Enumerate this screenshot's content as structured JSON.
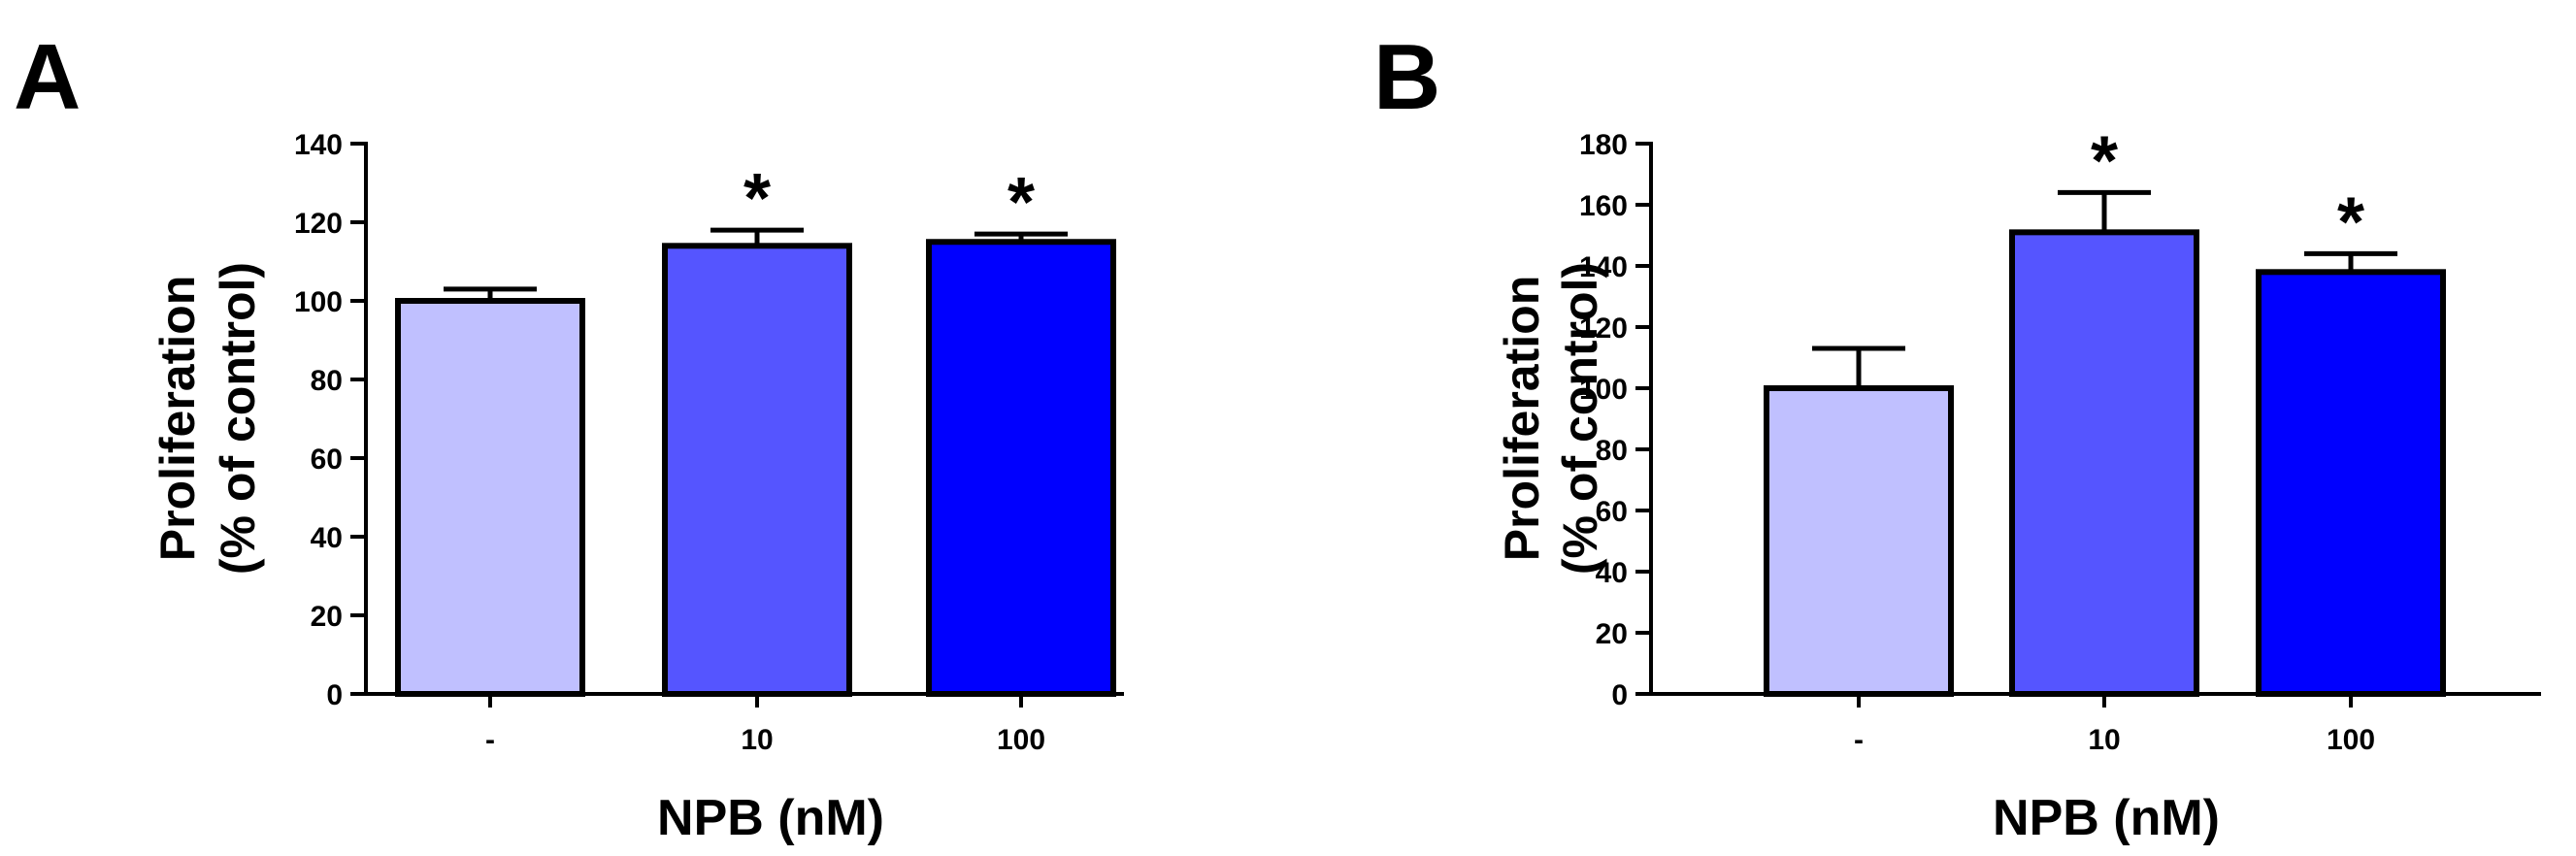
{
  "chart_data": [
    {
      "type": "bar",
      "panel_label": "A",
      "categories": [
        "-",
        "10",
        "100"
      ],
      "values": [
        100,
        114,
        115
      ],
      "errors": [
        3,
        4,
        2
      ],
      "significance": [
        "",
        "*",
        "*"
      ],
      "colors": [
        "#c0c0ff",
        "#5555ff",
        "#0000ff"
      ],
      "xlabel": "NPB (nM)",
      "ylabel_lines": [
        "Proliferation",
        "(% of control)"
      ],
      "ylim": [
        0,
        140
      ],
      "yticks": [
        0,
        20,
        40,
        60,
        80,
        100,
        120,
        140
      ],
      "grid": false
    },
    {
      "type": "bar",
      "panel_label": "B",
      "categories": [
        "-",
        "10",
        "100"
      ],
      "values": [
        100,
        151,
        138
      ],
      "errors": [
        13,
        13,
        6
      ],
      "significance": [
        "",
        "*",
        "*"
      ],
      "colors": [
        "#c0c0ff",
        "#5555ff",
        "#0000ff"
      ],
      "xlabel": "NPB (nM)",
      "ylabel_lines": [
        "Proliferation",
        "(% of control)"
      ],
      "ylim": [
        0,
        180
      ],
      "yticks": [
        0,
        20,
        40,
        60,
        80,
        100,
        120,
        140,
        160,
        180
      ],
      "grid": false
    }
  ]
}
